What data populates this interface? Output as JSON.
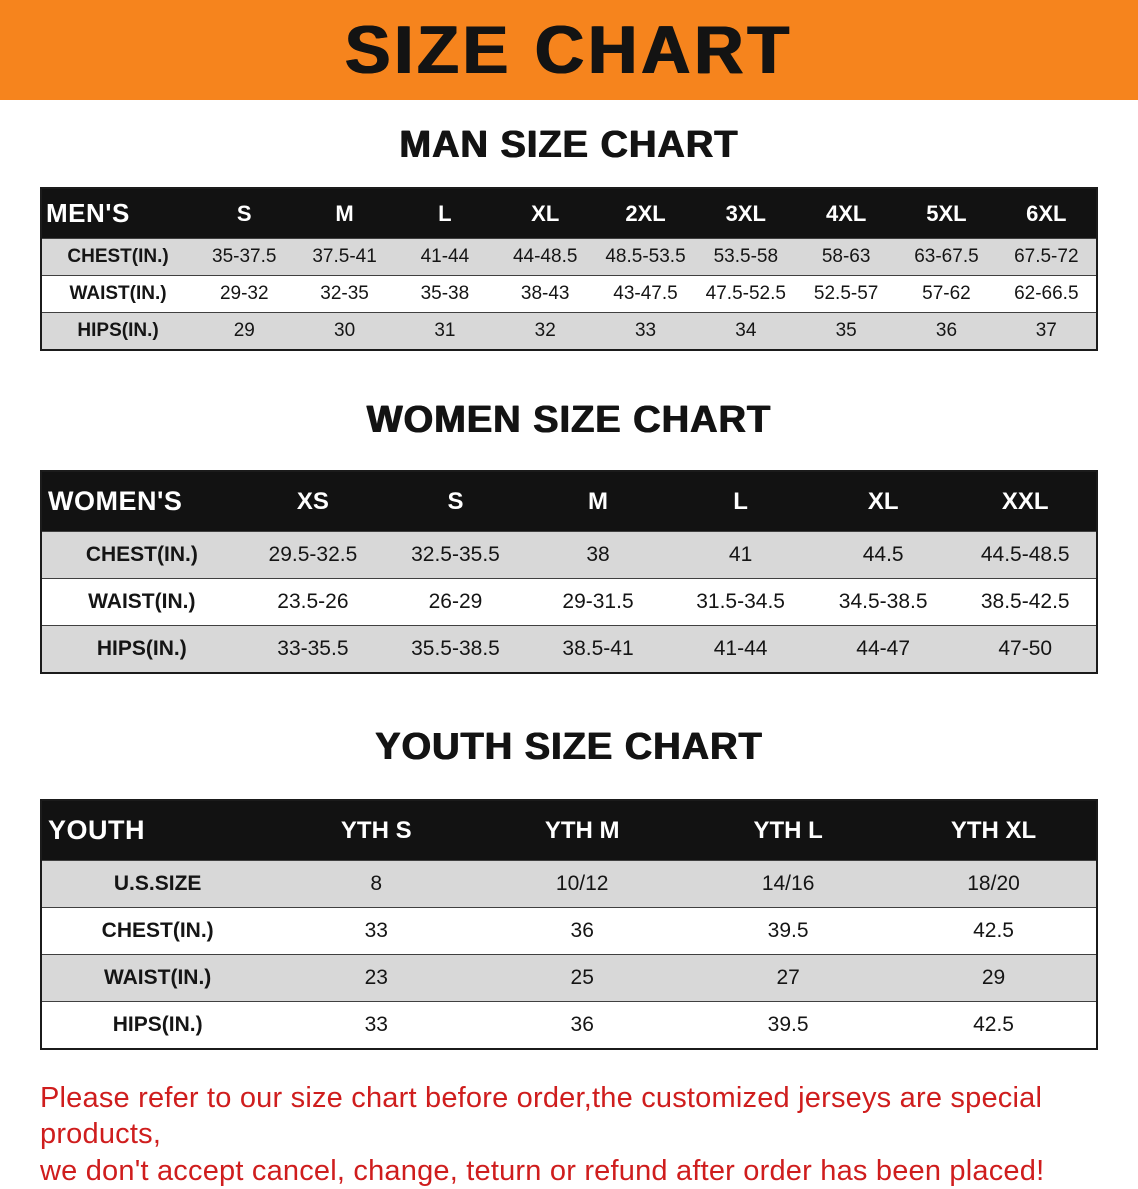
{
  "banner": {
    "title": "SIZE CHART",
    "bg_color": "#f6841d"
  },
  "sections": [
    {
      "id": "men",
      "heading": "MAN SIZE CHART",
      "table": {
        "header": [
          "MEN'S",
          "S",
          "M",
          "L",
          "XL",
          "2XL",
          "3XL",
          "4XL",
          "5XL",
          "6XL"
        ],
        "rows": [
          {
            "label": "CHEST(IN.)",
            "values": [
              "35-37.5",
              "37.5-41",
              "41-44",
              "44-48.5",
              "48.5-53.5",
              "53.5-58",
              "58-63",
              "63-67.5",
              "67.5-72"
            ]
          },
          {
            "label": "WAIST(IN.)",
            "values": [
              "29-32",
              "32-35",
              "35-38",
              "38-43",
              "43-47.5",
              "47.5-52.5",
              "52.5-57",
              "57-62",
              "62-66.5"
            ]
          },
          {
            "label": "HIPS(IN.)",
            "values": [
              "29",
              "30",
              "31",
              "32",
              "33",
              "34",
              "35",
              "36",
              "37"
            ]
          }
        ]
      }
    },
    {
      "id": "women",
      "heading": "WOMEN SIZE CHART",
      "table": {
        "header": [
          "WOMEN'S",
          "XS",
          "S",
          "M",
          "L",
          "XL",
          "XXL"
        ],
        "rows": [
          {
            "label": "CHEST(IN.)",
            "values": [
              "29.5-32.5",
              "32.5-35.5",
              "38",
              "41",
              "44.5",
              "44.5-48.5"
            ]
          },
          {
            "label": "WAIST(IN.)",
            "values": [
              "23.5-26",
              "26-29",
              "29-31.5",
              "31.5-34.5",
              "34.5-38.5",
              "38.5-42.5"
            ]
          },
          {
            "label": "HIPS(IN.)",
            "values": [
              "33-35.5",
              "35.5-38.5",
              "38.5-41",
              "41-44",
              "44-47",
              "47-50"
            ]
          }
        ]
      }
    },
    {
      "id": "youth",
      "heading": "YOUTH SIZE CHART",
      "table": {
        "header": [
          "YOUTH",
          "YTH S",
          "YTH M",
          "YTH L",
          "YTH XL"
        ],
        "rows": [
          {
            "label": "U.S.SIZE",
            "values": [
              "8",
              "10/12",
              "14/16",
              "18/20"
            ]
          },
          {
            "label": "CHEST(IN.)",
            "values": [
              "33",
              "36",
              "39.5",
              "42.5"
            ]
          },
          {
            "label": "WAIST(IN.)",
            "values": [
              "23",
              "25",
              "27",
              "29"
            ]
          },
          {
            "label": "HIPS(IN.)",
            "values": [
              "33",
              "36",
              "39.5",
              "42.5"
            ]
          }
        ]
      }
    }
  ],
  "disclaimer": {
    "line1": "Please refer to our size chart before order,the customized jerseys are special products,",
    "line2": "we don't accept cancel, change, teturn or refund after order has been placed!",
    "color": "#cf1d1d"
  }
}
